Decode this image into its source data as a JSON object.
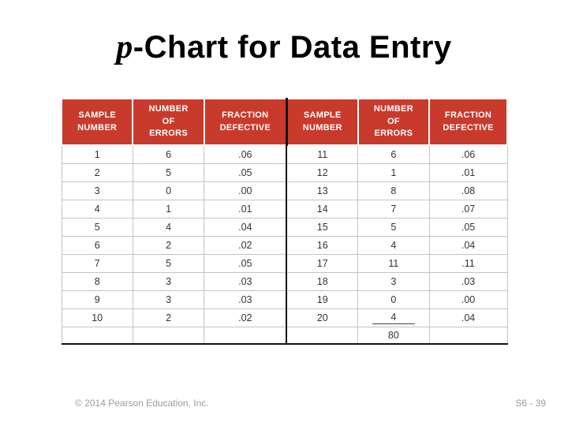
{
  "title": {
    "italic": "p",
    "rest": "-Chart for Data Entry"
  },
  "table": {
    "headers": [
      "SAMPLE\nNUMBER",
      "NUMBER\nOF\nERRORS",
      "FRACTION\nDEFECTIVE",
      "SAMPLE\nNUMBER",
      "NUMBER\nOF\nERRORS",
      "FRACTION\nDEFECTIVE"
    ],
    "rows": [
      {
        "cells": [
          "1",
          "6",
          ".06",
          "11",
          "6",
          ".06"
        ]
      },
      {
        "cells": [
          "2",
          "5",
          ".05",
          "12",
          "1",
          ".01"
        ]
      },
      {
        "cells": [
          "3",
          "0",
          ".00",
          "13",
          "8",
          ".08"
        ]
      },
      {
        "cells": [
          "4",
          "1",
          ".01",
          "14",
          "7",
          ".07"
        ]
      },
      {
        "cells": [
          "5",
          "4",
          ".04",
          "15",
          "5",
          ".05"
        ]
      },
      {
        "cells": [
          "6",
          "2",
          ".02",
          "16",
          "4",
          ".04"
        ]
      },
      {
        "cells": [
          "7",
          "5",
          ".05",
          "17",
          "11",
          ".11"
        ]
      },
      {
        "cells": [
          "8",
          "3",
          ".03",
          "18",
          "3",
          ".03"
        ]
      },
      {
        "cells": [
          "9",
          "3",
          ".03",
          "19",
          "0",
          ".00"
        ]
      },
      {
        "cells": [
          "10",
          "2",
          ".02",
          "20",
          "4",
          ".04"
        ],
        "underline_cell": 4
      }
    ],
    "total_row": {
      "cells": [
        "",
        "",
        "",
        "",
        "80",
        ""
      ]
    }
  },
  "footer": {
    "left": "© 2014 Pearson Education, Inc.",
    "right": "S6 - 39"
  },
  "colors": {
    "header_bg": "#C93A2C",
    "header_text": "#FFFFFF",
    "divider": "#111111",
    "grid_line": "#C3C3C3",
    "footer_text": "#9B9B9B"
  }
}
